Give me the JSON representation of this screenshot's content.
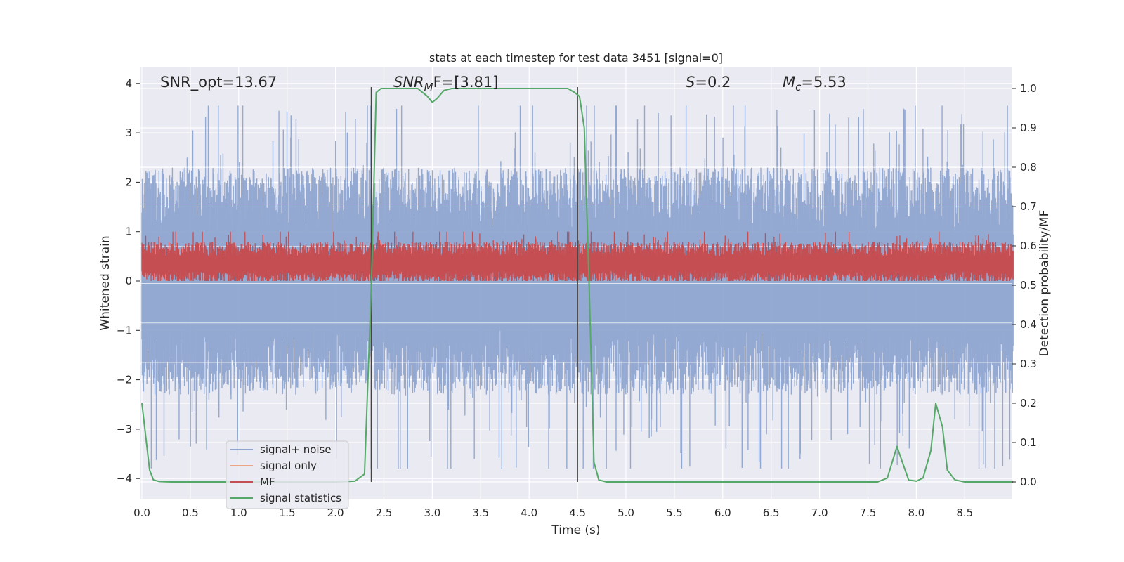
{
  "chart_data": {
    "type": "line",
    "title": "stats at each timestep for test data 3451 [signal=0]",
    "xlabel": "Time (s)",
    "ylabel": "Whitened strain",
    "y2label": "Detection probability/MF",
    "xlim": [
      0.0,
      9.0
    ],
    "ylim": [
      -4.4,
      4.35
    ],
    "y2lim": [
      -0.05,
      1.04
    ],
    "xticks": [
      "0.0",
      "0.5",
      "1.0",
      "1.5",
      "2.0",
      "2.5",
      "3.0",
      "3.5",
      "4.0",
      "4.5",
      "5.0",
      "5.5",
      "6.0",
      "6.5",
      "7.0",
      "7.5",
      "8.0",
      "8.5"
    ],
    "yticks": [
      "4",
      "3",
      "2",
      "1",
      "0",
      "−1",
      "−2",
      "−3",
      "−4"
    ],
    "y2ticks": [
      "1.0",
      "0.9",
      "0.8",
      "0.7",
      "0.6",
      "0.5",
      "0.4",
      "0.3",
      "0.2",
      "0.1",
      "0.0"
    ],
    "annotations": {
      "snr_opt": "SNR_opt=13.67",
      "snr_mf_sym": "SNR",
      "snr_mf_sub": "M",
      "snr_mf_rest": "F=[3.81]",
      "s_sym": "S",
      "s_val": "=0.2",
      "mc_sym": "M",
      "mc_sub": "c",
      "mc_val": "=5.53"
    },
    "vlines": [
      2.37,
      4.5
    ],
    "series": [
      {
        "name": "signal+ noise",
        "color": "#8fa5cf",
        "envelope": {
          "upper_mean": 1.6,
          "lower_mean": -1.6,
          "max": 3.55,
          "min": -3.8
        }
      },
      {
        "name": "signal only",
        "color": "#eea583"
      },
      {
        "name": "MF",
        "color": "#c44e52",
        "envelope": {
          "center": 0.35,
          "max": 1.0,
          "min": 0.0
        }
      },
      {
        "name": "signal statistics",
        "color": "#55a868",
        "axis": "right",
        "x": [
          0.0,
          0.08,
          0.12,
          0.18,
          0.3,
          0.5,
          1.0,
          1.5,
          2.0,
          2.2,
          2.3,
          2.37,
          2.42,
          2.47,
          2.55,
          2.7,
          2.85,
          2.9,
          2.95,
          3.0,
          3.05,
          3.12,
          3.2,
          3.5,
          4.0,
          4.4,
          4.47,
          4.52,
          4.57,
          4.62,
          4.67,
          4.72,
          4.8,
          5.0,
          6.0,
          7.0,
          7.6,
          7.7,
          7.8,
          7.87,
          7.92,
          8.0,
          8.07,
          8.15,
          8.2,
          8.27,
          8.32,
          8.4,
          8.5,
          9.0
        ],
        "y": [
          0.2,
          0.03,
          0.005,
          0.001,
          0.0,
          0.0,
          0.0,
          0.0,
          0.0,
          0.002,
          0.02,
          0.5,
          0.99,
          1.0,
          1.0,
          1.0,
          1.0,
          0.99,
          0.98,
          0.965,
          0.975,
          0.995,
          1.0,
          1.0,
          1.0,
          1.0,
          0.99,
          0.98,
          0.9,
          0.5,
          0.05,
          0.005,
          0.0,
          0.0,
          0.0,
          0.0,
          0.0,
          0.01,
          0.09,
          0.04,
          0.005,
          0.002,
          0.01,
          0.08,
          0.2,
          0.14,
          0.03,
          0.005,
          0.0,
          0.0
        ]
      }
    ],
    "legend": {
      "location": "lower-left",
      "entries": [
        "signal+ noise",
        "signal only",
        "MF",
        "signal statistics"
      ]
    },
    "grid": true
  }
}
